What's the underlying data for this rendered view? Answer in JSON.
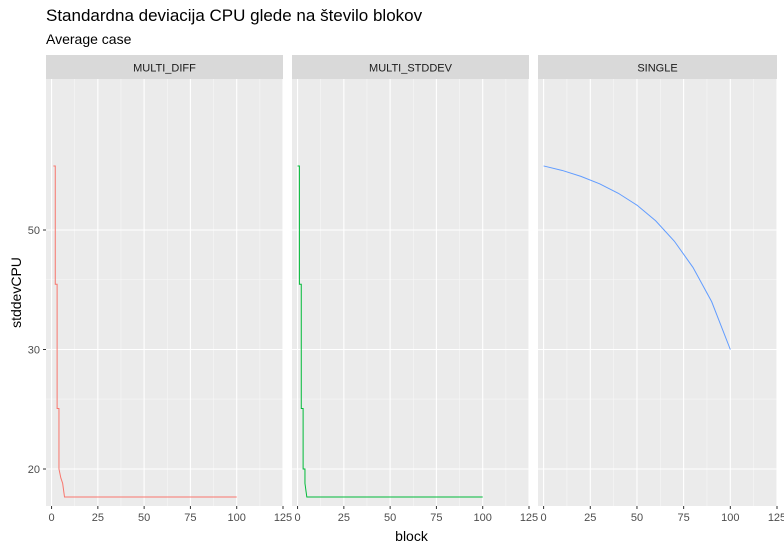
{
  "chart_data": {
    "type": "line",
    "title": "Standardna deviacija CPU glede na število blokov",
    "subtitle": "Average case",
    "xlabel": "block",
    "ylabel": "stddevCPU",
    "xlim": [
      -3,
      125
    ],
    "ylim": [
      17.5,
      69
    ],
    "x_ticks": [
      0,
      25,
      50,
      75,
      100,
      125
    ],
    "y_ticks": [
      20,
      30,
      50
    ],
    "grid": true,
    "facet_layout": "1 row, 3 columns, shared y axis",
    "facets": [
      {
        "name": "MULTI_DIFF",
        "color": "#F8766D",
        "x": [
          1,
          2,
          2,
          3,
          3,
          4,
          4,
          5,
          6,
          7,
          8,
          10,
          20,
          40,
          60,
          80,
          100
        ],
        "y": [
          68,
          68,
          39.2,
          39.2,
          24.2,
          24.2,
          20,
          19.5,
          19.2,
          18.5,
          18.5,
          18.5,
          18.5,
          18.5,
          18.5,
          18.5,
          18.5
        ]
      },
      {
        "name": "MULTI_STDDEV",
        "color": "#00BA38",
        "x": [
          0,
          1,
          1,
          2,
          2,
          3,
          3,
          4,
          4,
          5,
          6,
          8,
          20,
          40,
          60,
          80,
          100
        ],
        "y": [
          68,
          68,
          39.2,
          39.2,
          24.2,
          24.2,
          20,
          20,
          19.2,
          18.5,
          18.5,
          18.5,
          18.5,
          18.5,
          18.5,
          18.5,
          18.5
        ]
      },
      {
        "name": "SINGLE",
        "color": "#619CFF",
        "x": [
          0,
          10,
          20,
          30,
          40,
          50,
          60,
          70,
          80,
          90,
          100
        ],
        "y": [
          68,
          66.5,
          64.6,
          62.3,
          59.5,
          56.2,
          52.2,
          47.5,
          42.2,
          36.4,
          30
        ]
      }
    ]
  }
}
